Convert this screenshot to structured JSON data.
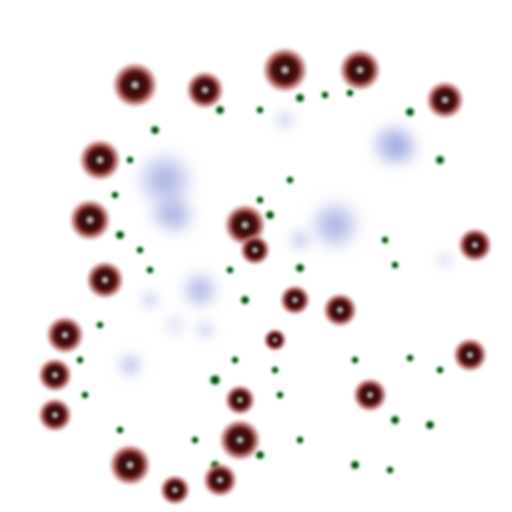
{
  "image": {
    "kind": "multichannel-fluorescence-composite",
    "background": "#ffffff"
  },
  "channels": [
    {
      "name": "red",
      "color": "#a83a3a",
      "role": "large bright rings"
    },
    {
      "name": "green",
      "color": "#2fa84a",
      "role": "small punctate dots"
    },
    {
      "name": "blue",
      "color": "#5a6cc8",
      "role": "diffuse cloud regions"
    }
  ]
}
